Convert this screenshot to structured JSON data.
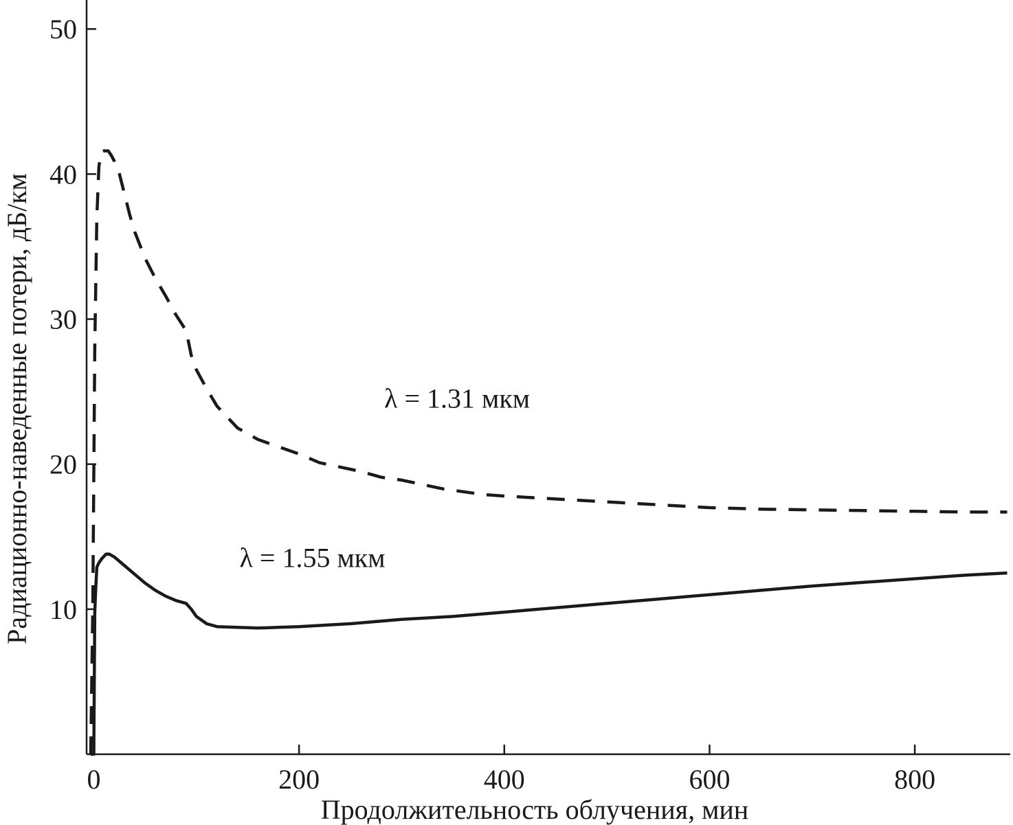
{
  "chart_data": {
    "type": "line",
    "title": "",
    "xlabel": "Продолжительность облучения, мин",
    "ylabel": "Радиационно-наведенные потери, дБ/км",
    "xlim": [
      -7,
      893
    ],
    "ylim": [
      0,
      52
    ],
    "x_ticks": [
      0,
      200,
      400,
      600,
      800
    ],
    "y_ticks": [
      10,
      20,
      30,
      40,
      50
    ],
    "grid": false,
    "legend": "none",
    "series": [
      {
        "name": "λ = 1.31 мкм",
        "style": "dashed",
        "color": "#1a1a1a",
        "x": [
          -3,
          -1,
          1,
          3,
          5,
          7,
          10,
          14,
          17,
          20,
          25,
          30,
          35,
          40,
          50,
          60,
          70,
          80,
          90,
          95,
          100,
          110,
          120,
          140,
          160,
          180,
          200,
          220,
          240,
          260,
          280,
          300,
          320,
          340,
          360,
          380,
          400,
          450,
          500,
          550,
          600,
          650,
          700,
          750,
          800,
          850,
          890
        ],
        "y": [
          0,
          10,
          28,
          37,
          40.5,
          41.5,
          41.6,
          41.6,
          41.3,
          40.9,
          40,
          38.6,
          37.2,
          36,
          34.2,
          32.8,
          31.6,
          30.3,
          29.2,
          27.5,
          26.5,
          25.2,
          24,
          22.5,
          21.7,
          21.2,
          20.7,
          20.1,
          19.8,
          19.5,
          19.1,
          18.9,
          18.6,
          18.3,
          18.1,
          17.9,
          17.8,
          17.6,
          17.4,
          17.2,
          17.0,
          16.9,
          16.85,
          16.8,
          16.75,
          16.7,
          16.7
        ]
      },
      {
        "name": "λ = 1.55 мкм",
        "style": "solid",
        "color": "#1a1a1a",
        "x": [
          -3,
          0,
          1,
          2,
          3,
          5,
          8,
          12,
          15,
          20,
          30,
          40,
          50,
          60,
          70,
          80,
          90,
          95,
          100,
          110,
          120,
          140,
          160,
          180,
          200,
          250,
          300,
          350,
          400,
          450,
          500,
          550,
          600,
          650,
          700,
          750,
          800,
          850,
          890
        ],
        "y": [
          0,
          0,
          9.8,
          11.5,
          12.9,
          13.2,
          13.5,
          13.8,
          13.8,
          13.6,
          13.0,
          12.4,
          11.8,
          11.3,
          10.9,
          10.6,
          10.4,
          10.0,
          9.5,
          9.0,
          8.8,
          8.75,
          8.7,
          8.75,
          8.8,
          9.0,
          9.3,
          9.5,
          9.8,
          10.1,
          10.4,
          10.7,
          11.0,
          11.3,
          11.6,
          11.85,
          12.1,
          12.35,
          12.5
        ]
      }
    ],
    "annotations": [
      {
        "text": "λ = 1.31 мкм",
        "x": 283,
        "y": 23.9
      },
      {
        "text": "λ = 1.55 мкм",
        "x": 142,
        "y": 12.9
      }
    ]
  }
}
